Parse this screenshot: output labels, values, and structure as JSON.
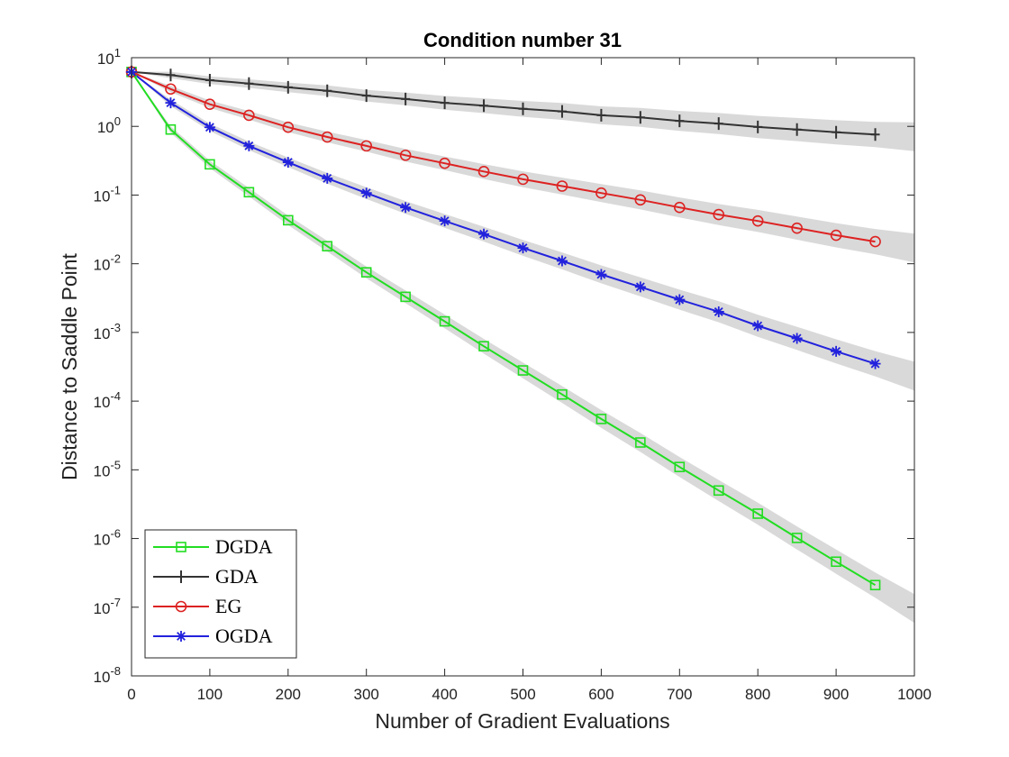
{
  "chart_data": {
    "type": "line",
    "title": "Condition number 31",
    "xlabel": "Number of Gradient Evaluations",
    "ylabel": "Distance to Saddle Point",
    "xlim": [
      0,
      1000
    ],
    "ylim_log10": [
      -8,
      1
    ],
    "yscale": "log",
    "x_ticks": [
      0,
      100,
      200,
      300,
      400,
      500,
      600,
      700,
      800,
      900,
      1000
    ],
    "x_tick_labels": [
      "0",
      "100",
      "200",
      "300",
      "400",
      "500",
      "600",
      "700",
      "800",
      "900",
      "1000"
    ],
    "y_tick_exponents": [
      -8,
      -7,
      -6,
      -5,
      -4,
      -3,
      -2,
      -1,
      0,
      1
    ],
    "y_tick_base": "10",
    "legend_location": "bottom-left",
    "band_color": "#d9d9d9",
    "series": [
      {
        "name": "DGDA",
        "color": "#22dd22",
        "marker": "square",
        "x": [
          0,
          50,
          100,
          150,
          200,
          250,
          300,
          350,
          400,
          450,
          500,
          550,
          600,
          650,
          700,
          750,
          800,
          850,
          900,
          950
        ],
        "values": [
          6.2,
          0.9,
          0.28,
          0.11,
          0.043,
          0.018,
          0.0075,
          0.0033,
          0.00145,
          0.00063,
          0.00028,
          0.000125,
          5.5e-05,
          2.5e-05,
          1.1e-05,
          5e-06,
          2.3e-06,
          1.02e-06,
          4.6e-07,
          2.1e-07
        ],
        "band_end": [
          1.3e-07,
          6.5e-08
        ]
      },
      {
        "name": "GDA",
        "color": "#333333",
        "marker": "plus",
        "x": [
          0,
          50,
          100,
          150,
          200,
          250,
          300,
          350,
          400,
          450,
          500,
          550,
          600,
          650,
          700,
          750,
          800,
          850,
          900,
          950
        ],
        "values": [
          6.2,
          5.6,
          4.7,
          4.2,
          3.7,
          3.3,
          2.8,
          2.5,
          2.2,
          2.0,
          1.8,
          1.65,
          1.45,
          1.35,
          1.2,
          1.1,
          0.98,
          0.9,
          0.82,
          0.76
        ],
        "band_end": [
          0.72,
          0.66
        ]
      },
      {
        "name": "EG",
        "color": "#dd2222",
        "marker": "circle",
        "x": [
          0,
          50,
          100,
          150,
          200,
          250,
          300,
          350,
          400,
          450,
          500,
          550,
          600,
          650,
          700,
          750,
          800,
          850,
          900,
          950
        ],
        "values": [
          6.2,
          3.5,
          2.1,
          1.45,
          0.97,
          0.7,
          0.52,
          0.38,
          0.29,
          0.22,
          0.17,
          0.135,
          0.107,
          0.085,
          0.066,
          0.052,
          0.042,
          0.033,
          0.026,
          0.021
        ],
        "band_end": [
          0.018,
          0.015
        ]
      },
      {
        "name": "OGDA",
        "color": "#2222dd",
        "marker": "asterisk",
        "x": [
          0,
          50,
          100,
          150,
          200,
          250,
          300,
          350,
          400,
          450,
          500,
          550,
          600,
          650,
          700,
          750,
          800,
          850,
          900,
          950
        ],
        "values": [
          6.2,
          2.2,
          0.97,
          0.52,
          0.3,
          0.175,
          0.107,
          0.066,
          0.042,
          0.027,
          0.017,
          0.011,
          0.007,
          0.0046,
          0.003,
          0.002,
          0.00125,
          0.00082,
          0.00053,
          0.00035
        ],
        "band_end": [
          0.00026,
          0.00018
        ]
      }
    ]
  }
}
